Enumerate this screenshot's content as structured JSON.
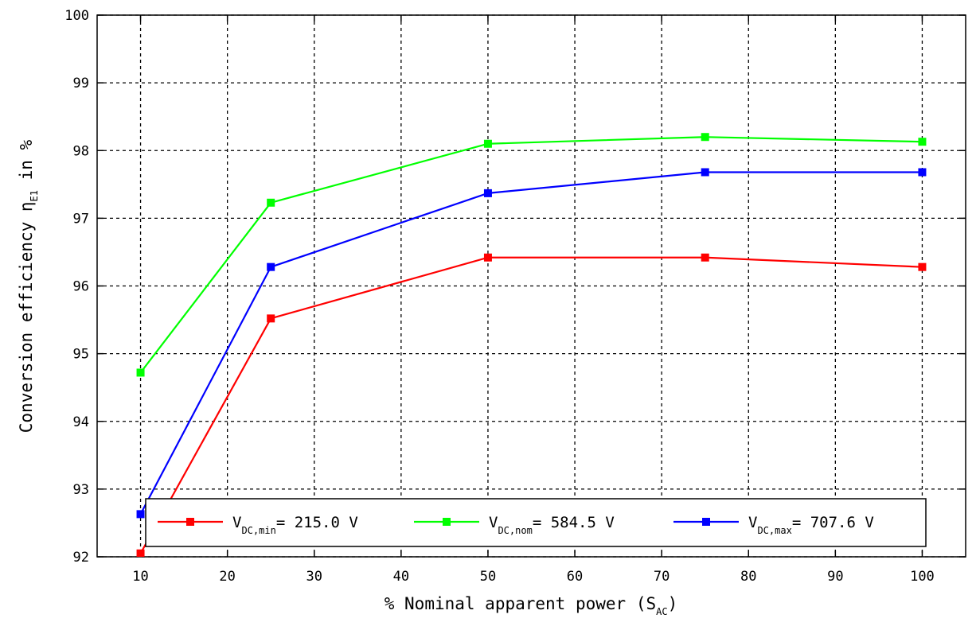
{
  "chart_data": {
    "type": "line",
    "xlabel": {
      "main": "% Nominal apparent power (S",
      "sub": "AC",
      "tail": ")"
    },
    "ylabel": {
      "main": "Conversion efficiency η",
      "sub": "E1",
      "tail": " in %"
    },
    "xlim": [
      5,
      105
    ],
    "ylim": [
      92,
      100
    ],
    "xticks": [
      10,
      20,
      30,
      40,
      50,
      60,
      70,
      80,
      90,
      100
    ],
    "yticks": [
      92,
      93,
      94,
      95,
      96,
      97,
      98,
      99,
      100
    ],
    "grid": true,
    "legend_position": "bottom",
    "x": [
      10,
      25,
      50,
      75,
      100
    ],
    "series": [
      {
        "label_main": "V",
        "label_sub": "DC,min",
        "label_tail": "= 215.0 V",
        "color": "#ff0000",
        "values": [
          92.05,
          95.52,
          96.42,
          96.42,
          96.28
        ]
      },
      {
        "label_main": "V",
        "label_sub": "DC,nom",
        "label_tail": "= 584.5 V",
        "color": "#00ff00",
        "values": [
          94.72,
          97.23,
          98.1,
          98.2,
          98.13
        ]
      },
      {
        "label_main": "V",
        "label_sub": "DC,max",
        "label_tail": "= 707.6 V",
        "color": "#0000ff",
        "values": [
          92.63,
          96.28,
          97.37,
          97.68,
          97.68
        ]
      }
    ]
  }
}
